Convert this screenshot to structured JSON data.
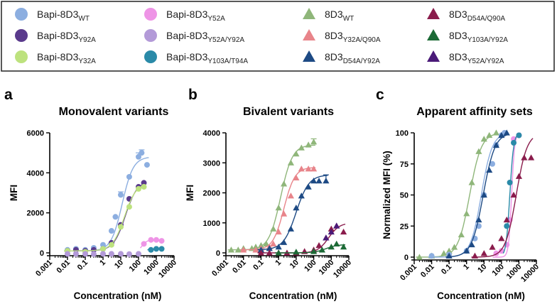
{
  "legend": {
    "items": [
      {
        "base": "Bapi-8D3",
        "sub": "WT",
        "marker": "circle",
        "color": "#8caee0"
      },
      {
        "base": "Bapi-8D3",
        "sub": "Y92A",
        "marker": "circle",
        "color": "#5a3a8c"
      },
      {
        "base": "Bapi-8D3",
        "sub": "Y32A",
        "marker": "circle",
        "color": "#bde27e"
      },
      {
        "base": "Bapi-8D3",
        "sub": "Y52A",
        "marker": "circle",
        "color": "#ee94e6"
      },
      {
        "base": "Bapi-8D3",
        "sub": "Y52A/Y92A",
        "marker": "circle",
        "color": "#b39ad8"
      },
      {
        "base": "Bapi-8D3",
        "sub": "Y103A/T94A",
        "marker": "circle",
        "color": "#2a8aa8"
      },
      {
        "base": "8D3",
        "sub": "WT",
        "marker": "triangle",
        "color": "#8fb67a"
      },
      {
        "base": "8D3",
        "sub": "Y32A/Q90A",
        "marker": "triangle",
        "color": "#e8848a"
      },
      {
        "base": "8D3",
        "sub": "D54A/Y92A",
        "marker": "triangle",
        "color": "#1d4a84"
      },
      {
        "base": "8D3",
        "sub": "D54A/Q90A",
        "marker": "triangle",
        "color": "#8a1c4c"
      },
      {
        "base": "8D3",
        "sub": "Y103A/Y92A",
        "marker": "triangle",
        "color": "#1c6a36"
      },
      {
        "base": "8D3",
        "sub": "Y52A/Y92A",
        "marker": "triangle",
        "color": "#4a1a78"
      }
    ]
  },
  "panels": [
    {
      "label": "a",
      "title": "Monovalent variants"
    },
    {
      "label": "b",
      "title": "Bivalent variants"
    },
    {
      "label": "c",
      "title": "Apparent affinity sets"
    }
  ],
  "chart_data": [
    {
      "type": "scatter",
      "title": "Monovalent variants",
      "xlabel": "Concentration (nM)",
      "ylabel": "MFI",
      "xscale": "log",
      "xlim": [
        0.001,
        10000
      ],
      "ylim": [
        0,
        6000
      ],
      "xticks": [
        "0.001",
        "0.01",
        "0.1",
        "1",
        "10",
        "100",
        "1000",
        "10000"
      ],
      "yticks": [
        "0",
        "2000",
        "4000",
        "6000"
      ],
      "series": [
        {
          "name": "Bapi-8D3 WT",
          "color": "#8caee0",
          "marker": "circle",
          "x": [
            0.01,
            0.03,
            0.1,
            0.3,
            1,
            3,
            5,
            10,
            30,
            100,
            150,
            300
          ],
          "y": [
            150,
            200,
            150,
            250,
            400,
            1100,
            1800,
            2900,
            3800,
            4800,
            5000,
            4400
          ],
          "fit": {
            "bottom": 100,
            "top": 4800,
            "ec50": 12,
            "hill": 1.4
          },
          "err": [
            0,
            0,
            0,
            0,
            0,
            0,
            0,
            150,
            0,
            200,
            150,
            0
          ]
        },
        {
          "name": "Bapi-8D3 Y92A",
          "color": "#5a3a8c",
          "marker": "circle",
          "x": [
            0.01,
            0.03,
            0.1,
            0.3,
            1,
            3,
            10,
            30,
            100,
            200
          ],
          "y": [
            100,
            150,
            100,
            150,
            200,
            500,
            1400,
            2700,
            3300,
            3500
          ],
          "fit": {
            "bottom": 100,
            "top": 3600,
            "ec50": 18,
            "hill": 1.3
          },
          "err": []
        },
        {
          "name": "Bapi-8D3 Y32A",
          "color": "#bde27e",
          "marker": "circle",
          "x": [
            0.01,
            0.1,
            1,
            3,
            10,
            30,
            100,
            200
          ],
          "y": [
            100,
            50,
            200,
            400,
            1300,
            2300,
            3200,
            3300
          ],
          "fit": {
            "bottom": 100,
            "top": 3500,
            "ec50": 16,
            "hill": 1.3
          },
          "err": []
        },
        {
          "name": "Bapi-8D3 Y52A",
          "color": "#ee94e6",
          "marker": "circle",
          "x": [
            200,
            500,
            1000,
            2000
          ],
          "y": [
            450,
            650,
            650,
            600
          ],
          "fit": {
            "bottom": 0,
            "top": 650,
            "ec50": 150,
            "hill": 3.0
          },
          "err": []
        },
        {
          "name": "Bapi-8D3 Y52A/Y92A",
          "color": "#b39ad8",
          "marker": "circle",
          "x": [
            0.01,
            0.03,
            0.1,
            0.3,
            1,
            3,
            10,
            30,
            100
          ],
          "y": [
            -50,
            -50,
            -50,
            -60,
            -50,
            -50,
            -50,
            -60,
            -50
          ],
          "fit": null,
          "err": []
        },
        {
          "name": "Bapi-8D3 Y103A/T94A",
          "color": "#2a8aa8",
          "marker": "circle",
          "x": [
            500,
            1000,
            2000
          ],
          "y": [
            150,
            200,
            200
          ],
          "fit": {
            "bottom": 0,
            "top": 200,
            "ec50": 200,
            "hill": 2.5
          },
          "err": []
        }
      ]
    },
    {
      "type": "scatter",
      "title": "Bivalent variants",
      "xlabel": "Concentration (nM)",
      "ylabel": "MFI",
      "xscale": "log",
      "xlim": [
        0.001,
        10000
      ],
      "ylim": [
        0,
        4000
      ],
      "xticks": [
        "0.001",
        "0.01",
        "0.1",
        "1",
        "10",
        "100",
        "1000",
        "10000"
      ],
      "yticks": [
        "0",
        "1000",
        "2000",
        "3000",
        "4000"
      ],
      "series": [
        {
          "name": "8D3 WT",
          "color": "#8fb67a",
          "marker": "triangle",
          "x": [
            0.002,
            0.005,
            0.01,
            0.03,
            0.05,
            0.1,
            0.2,
            0.5,
            1,
            2,
            5,
            10,
            20,
            50,
            100
          ],
          "y": [
            100,
            100,
            150,
            150,
            200,
            250,
            300,
            800,
            1500,
            2300,
            3000,
            3300,
            3500,
            3600,
            3700
          ],
          "fit": {
            "bottom": 100,
            "top": 3600,
            "ec50": 1.3,
            "hill": 1.3
          },
          "err": [
            0,
            0,
            0,
            0,
            0,
            0,
            0,
            0,
            0,
            0,
            0,
            0,
            0,
            0,
            100
          ]
        },
        {
          "name": "8D3 Y32A/Q90A",
          "color": "#e8848a",
          "marker": "triangle",
          "x": [
            0.01,
            0.05,
            0.1,
            0.3,
            0.5,
            1,
            2,
            5,
            10,
            20,
            50,
            100
          ],
          "y": [
            100,
            100,
            150,
            200,
            300,
            700,
            1300,
            1900,
            2500,
            2800,
            2800,
            2800
          ],
          "fit": {
            "bottom": 100,
            "top": 2850,
            "ec50": 2,
            "hill": 1.4
          },
          "err": []
        },
        {
          "name": "8D3 D54A/Y92A",
          "color": "#1d4a84",
          "marker": "triangle",
          "x": [
            0.1,
            0.3,
            1,
            2,
            5,
            10,
            20,
            50,
            100,
            200,
            500
          ],
          "y": [
            100,
            150,
            200,
            350,
            800,
            1500,
            1900,
            2200,
            2400,
            2400,
            2400
          ],
          "fit": {
            "bottom": 100,
            "top": 2600,
            "ec50": 10,
            "hill": 1.2
          },
          "err": [
            0,
            0,
            0,
            0,
            0,
            0,
            0,
            0,
            0,
            0,
            200
          ]
        },
        {
          "name": "8D3 D54A/Q90A",
          "color": "#8a1c4c",
          "marker": "triangle",
          "x": [
            0.1,
            0.3,
            1,
            3,
            10,
            30,
            100,
            200,
            500,
            1000,
            2000,
            5000
          ],
          "y": [
            0,
            0,
            0,
            0,
            0,
            50,
            100,
            250,
            500,
            800,
            900,
            700
          ],
          "fit": {
            "bottom": 0,
            "top": 1000,
            "ec50": 700,
            "hill": 1.4
          },
          "err": []
        },
        {
          "name": "8D3 Y103A/Y92A",
          "color": "#1c6a36",
          "marker": "triangle",
          "x": [
            1,
            10,
            100,
            300,
            1000,
            2000,
            5000
          ],
          "y": [
            0,
            30,
            50,
            100,
            200,
            300,
            200
          ],
          "fit": {
            "bottom": 0,
            "top": 280,
            "ec50": 500,
            "hill": 1.3
          },
          "err": []
        },
        {
          "name": "8D3 Y52A/Y92A",
          "color": "#4a1a78",
          "marker": "triangle",
          "x": [
            500,
            1000,
            2000
          ],
          "y": [
            500,
            700,
            900
          ],
          "fit": null,
          "err": []
        }
      ]
    },
    {
      "type": "scatter",
      "title": "Apparent affinity sets",
      "xlabel": "Concentration (nM)",
      "ylabel": "Normalized MFI (%)",
      "xscale": "log",
      "xlim": [
        0.001,
        10000
      ],
      "ylim": [
        0,
        100
      ],
      "xticks": [
        "0.001",
        "0.01",
        "0.1",
        "1",
        "10",
        "100",
        "1000",
        "10000"
      ],
      "yticks": [
        "0",
        "25",
        "50",
        "75",
        "100"
      ],
      "series": [
        {
          "name": "8D3 WT",
          "color": "#8fb67a",
          "marker": "triangle",
          "x": [
            0.002,
            0.01,
            0.05,
            0.1,
            0.2,
            0.5,
            1,
            2,
            5,
            10,
            20,
            50
          ],
          "y": [
            0,
            1,
            3,
            5,
            8,
            18,
            35,
            60,
            85,
            95,
            98,
            100
          ],
          "fit": {
            "bottom": 0,
            "top": 100,
            "ec50": 1.5,
            "hill": 1.3
          },
          "err": []
        },
        {
          "name": "Bapi-8D3 WT",
          "color": "#8caee0",
          "marker": "circle",
          "x": [
            0.01,
            0.1,
            1,
            3,
            5,
            10,
            30,
            50,
            100,
            150
          ],
          "y": [
            1,
            2,
            5,
            15,
            25,
            50,
            75,
            90,
            98,
            100
          ],
          "fit": {
            "bottom": 0,
            "top": 100,
            "ec50": 7,
            "hill": 1.4
          },
          "err": []
        },
        {
          "name": "8D3 D54A/Y92A",
          "color": "#1d4a84",
          "marker": "triangle",
          "x": [
            0.1,
            1,
            2,
            5,
            10,
            20,
            50,
            100,
            200
          ],
          "y": [
            1,
            5,
            10,
            30,
            50,
            70,
            90,
            98,
            100
          ],
          "fit": {
            "bottom": 0,
            "top": 100,
            "ec50": 9,
            "hill": 1.3
          },
          "err": []
        },
        {
          "name": "Bapi-8D3 Y52A",
          "color": "#ee94e6",
          "marker": "circle",
          "x": [
            50,
            100,
            200,
            300,
            500,
            1000
          ],
          "y": [
            3,
            5,
            10,
            30,
            95,
            98
          ],
          "fit": {
            "bottom": 0,
            "top": 100,
            "ec50": 380,
            "hill": 5
          },
          "err": []
        },
        {
          "name": "Bapi-8D3 Y103A/T94A",
          "color": "#2a8aa8",
          "marker": "circle",
          "x": [
            200,
            300,
            500,
            1000
          ],
          "y": [
            25,
            60,
            92,
            98
          ],
          "fit": {
            "bottom": 0,
            "top": 100,
            "ec50": 300,
            "hill": 4
          },
          "err": []
        },
        {
          "name": "8D3 D54A/Q90A",
          "color": "#8a1c4c",
          "marker": "triangle",
          "x": [
            3,
            10,
            30,
            100,
            200,
            500,
            1000,
            2000,
            5000
          ],
          "y": [
            1,
            3,
            8,
            15,
            30,
            50,
            65,
            80,
            80
          ],
          "fit": {
            "bottom": 0,
            "top": 100,
            "ec50": 700,
            "hill": 1.4
          },
          "err": []
        }
      ]
    }
  ]
}
